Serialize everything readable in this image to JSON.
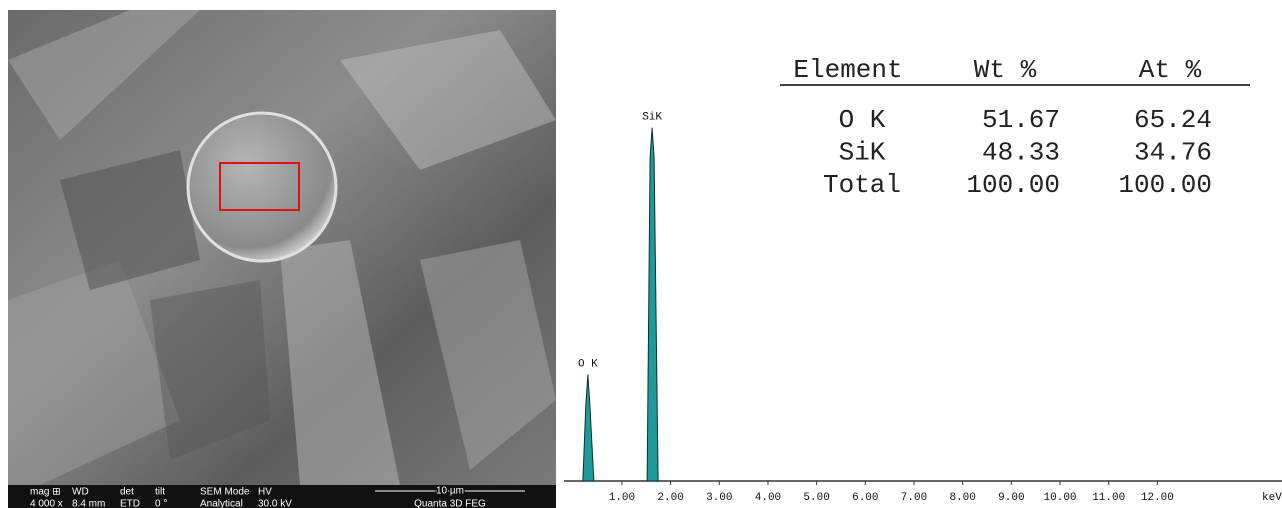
{
  "sem": {
    "headers": [
      "mag ⊞",
      "WD",
      "det",
      "tilt",
      "SEM Mode",
      "HV"
    ],
    "values": [
      "4 000 x",
      "8.4 mm",
      "ETD",
      "0 °",
      "Analytical",
      "30.0 kV"
    ],
    "scale": "10 µm",
    "instrument": "Quanta 3D FEG"
  },
  "table": {
    "header": [
      "Element",
      "Wt %",
      "At %"
    ],
    "rows": [
      [
        "O K",
        "51.67",
        "65.24"
      ],
      [
        "SiK",
        "48.33",
        "34.76"
      ],
      [
        "Total",
        "100.00",
        "100.00"
      ]
    ]
  },
  "chart_data": {
    "type": "spectrum",
    "x_unit": "keV",
    "x": [
      0.3,
      1.62
    ],
    "peak_labels": [
      "O K",
      "SiK"
    ],
    "values": [
      28,
      93
    ],
    "color": "#1f9a9a",
    "xlim": [
      -0.19,
      14.56
    ],
    "ylim": [
      0,
      100
    ],
    "xticks": [
      {
        "value": 1,
        "label": "1.00"
      },
      {
        "value": 2,
        "label": "2.00"
      },
      {
        "value": 3,
        "label": "3.00"
      },
      {
        "value": 4,
        "label": "4.00"
      },
      {
        "value": 5,
        "label": "5.00"
      },
      {
        "value": 6,
        "label": "6.00"
      },
      {
        "value": 7,
        "label": "7.00"
      },
      {
        "value": 8,
        "label": "8.00"
      },
      {
        "value": 9,
        "label": "9.00"
      },
      {
        "value": 10,
        "label": "10.00"
      },
      {
        "value": 11,
        "label": "11.00"
      },
      {
        "value": 12,
        "label": "12.00"
      }
    ]
  }
}
